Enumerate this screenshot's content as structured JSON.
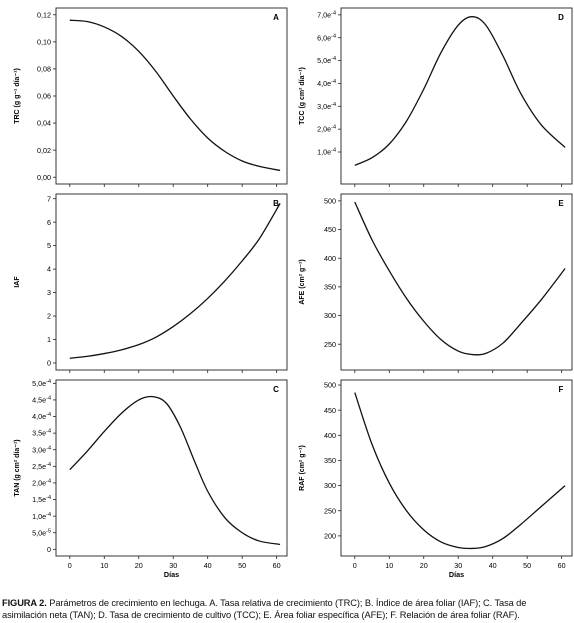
{
  "caption": {
    "label": "FIGURA 2.",
    "text": "Parámetros de crecimiento en lechuga. A. Tasa relativa de crecimiento (TRC); B. Índice de área foliar (IAF); C. Tasa de asimilación neta (TAN); D. Tasa de crecimiento de cultivo (TCC); E. Área foliar específica (AFE); F. Relación de área foliar (RAF)."
  },
  "chart_data": [
    {
      "id": "A",
      "type": "line",
      "letter": "A",
      "ylabel": "TRC (g g⁻¹ día⁻¹)",
      "xlabel": "",
      "xlim": [
        -4,
        63
      ],
      "ylim": [
        -0.005,
        0.125
      ],
      "yticks": [
        0.0,
        0.02,
        0.04,
        0.06,
        0.08,
        0.1,
        0.12
      ],
      "ytick_labels": [
        "0,00",
        "0,02",
        "0,04",
        "0,06",
        "0,08",
        "0,10",
        "0,12"
      ],
      "xticks": [
        0,
        10,
        20,
        30,
        40,
        50,
        60
      ],
      "xtick_labels": [],
      "series": [
        {
          "x": [
            0,
            5,
            10,
            15,
            20,
            25,
            30,
            35,
            40,
            45,
            50,
            55,
            61
          ],
          "y": [
            0.116,
            0.115,
            0.111,
            0.104,
            0.093,
            0.078,
            0.06,
            0.043,
            0.029,
            0.019,
            0.012,
            0.008,
            0.005
          ]
        }
      ]
    },
    {
      "id": "D",
      "type": "line",
      "letter": "D",
      "ylabel": "TCC (g cm² día⁻¹)",
      "xlabel": "",
      "xlim": [
        -4,
        63
      ],
      "ylim": [
        -0.4,
        7.3
      ],
      "yticks": [
        1,
        2,
        3,
        4,
        5,
        6,
        7
      ],
      "ytick_labels": [
        "1,0e-4",
        "2,0e-4",
        "3,0e-4",
        "4,0e-4",
        "5,0e-4",
        "6,0e-4",
        "7,0e-4"
      ],
      "xticks": [
        0,
        10,
        20,
        30,
        40,
        50,
        60
      ],
      "xtick_labels": [],
      "series": [
        {
          "x": [
            0,
            5,
            10,
            15,
            20,
            25,
            30,
            34,
            38,
            43,
            48,
            54,
            61
          ],
          "y": [
            0.42,
            0.75,
            1.35,
            2.35,
            3.75,
            5.35,
            6.55,
            6.92,
            6.55,
            5.2,
            3.6,
            2.2,
            1.2
          ]
        }
      ]
    },
    {
      "id": "B",
      "type": "line",
      "letter": "B",
      "ylabel": "IAF",
      "xlabel": "",
      "xlim": [
        -4,
        63
      ],
      "ylim": [
        -0.3,
        7.2
      ],
      "yticks": [
        0,
        1,
        2,
        3,
        4,
        5,
        6,
        7
      ],
      "ytick_labels": [
        "0",
        "1",
        "2",
        "3",
        "4",
        "5",
        "6",
        "7"
      ],
      "xticks": [
        0,
        10,
        20,
        30,
        40,
        50,
        60
      ],
      "xtick_labels": [],
      "series": [
        {
          "x": [
            0,
            5,
            10,
            15,
            20,
            25,
            30,
            35,
            40,
            45,
            50,
            55,
            61
          ],
          "y": [
            0.2,
            0.28,
            0.4,
            0.56,
            0.78,
            1.1,
            1.55,
            2.1,
            2.75,
            3.5,
            4.35,
            5.3,
            6.8
          ]
        }
      ]
    },
    {
      "id": "E",
      "type": "line",
      "letter": "E",
      "ylabel": "AFE (cm² g⁻¹)",
      "xlabel": "",
      "xlim": [
        -4,
        63
      ],
      "ylim": [
        205,
        512
      ],
      "yticks": [
        250,
        300,
        350,
        400,
        450,
        500
      ],
      "ytick_labels": [
        "250",
        "300",
        "350",
        "400",
        "450",
        "500"
      ],
      "xticks": [
        0,
        10,
        20,
        30,
        40,
        50,
        60
      ],
      "xtick_labels": [],
      "series": [
        {
          "x": [
            0,
            5,
            10,
            15,
            20,
            25,
            30,
            34,
            38,
            43,
            48,
            54,
            61
          ],
          "y": [
            498,
            432,
            378,
            330,
            290,
            258,
            238,
            232,
            234,
            252,
            285,
            327,
            382
          ]
        }
      ]
    },
    {
      "id": "C",
      "type": "line",
      "letter": "C",
      "ylabel": "TAN (g cm² día⁻¹)",
      "xlabel": "Días",
      "xlim": [
        -4,
        63
      ],
      "ylim": [
        -0.2,
        5.1
      ],
      "yticks": [
        0,
        0.5,
        1.0,
        1.5,
        2.0,
        2.5,
        3.0,
        3.5,
        4.0,
        4.5,
        5.0
      ],
      "ytick_labels": [
        "0",
        "5,0e-5",
        "1,0e-4",
        "1,5e-4",
        "2,0e-4",
        "2,5e-4",
        "3,0e-4",
        "3,5e-4",
        "4,0e-4",
        "4,5e-4",
        "5,0e-4"
      ],
      "xticks": [
        0,
        10,
        20,
        30,
        40,
        50,
        60
      ],
      "xtick_labels": [
        "0",
        "10",
        "20",
        "30",
        "40",
        "50",
        "60"
      ],
      "series": [
        {
          "x": [
            0,
            5,
            10,
            15,
            20,
            24,
            28,
            32,
            36,
            40,
            45,
            50,
            55,
            61
          ],
          "y": [
            2.4,
            2.95,
            3.55,
            4.1,
            4.5,
            4.6,
            4.4,
            3.7,
            2.7,
            1.75,
            0.95,
            0.5,
            0.25,
            0.15
          ]
        }
      ]
    },
    {
      "id": "F",
      "type": "line",
      "letter": "F",
      "ylabel": "RAF (cm² g⁻¹)",
      "xlabel": "Días",
      "xlim": [
        -4,
        63
      ],
      "ylim": [
        160,
        510
      ],
      "yticks": [
        200,
        250,
        300,
        350,
        400,
        450,
        500
      ],
      "ytick_labels": [
        "200",
        "250",
        "300",
        "350",
        "400",
        "450",
        "500"
      ],
      "xticks": [
        0,
        10,
        20,
        30,
        40,
        50,
        60
      ],
      "xtick_labels": [
        "0",
        "10",
        "20",
        "30",
        "40",
        "50",
        "60"
      ],
      "series": [
        {
          "x": [
            0,
            5,
            10,
            15,
            20,
            25,
            30,
            34,
            38,
            43,
            48,
            54,
            61
          ],
          "y": [
            485,
            382,
            305,
            250,
            212,
            188,
            177,
            175,
            179,
            195,
            222,
            258,
            300
          ]
        }
      ]
    }
  ]
}
